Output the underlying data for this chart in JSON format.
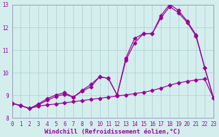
{
  "xlabel": "Windchill (Refroidissement éolien,°C)",
  "bg_color": "#d4eeee",
  "line_color": "#990099",
  "grid_color": "#aacccc",
  "axis_color": "#9999bb",
  "xlim": [
    0,
    23
  ],
  "ylim": [
    8.0,
    13.0
  ],
  "yticks": [
    8,
    9,
    10,
    11,
    12,
    13
  ],
  "xticks": [
    0,
    1,
    2,
    3,
    4,
    5,
    6,
    7,
    8,
    9,
    10,
    11,
    12,
    13,
    14,
    15,
    16,
    17,
    18,
    19,
    20,
    21,
    22,
    23
  ],
  "curve1_x": [
    0,
    1,
    2,
    3,
    4,
    5,
    6,
    7,
    8,
    9,
    10,
    11,
    12,
    13,
    14,
    15,
    16,
    17,
    18,
    19,
    20,
    21,
    22,
    23
  ],
  "curve1_y": [
    8.65,
    8.55,
    8.42,
    8.52,
    8.58,
    8.62,
    8.67,
    8.72,
    8.77,
    8.82,
    8.87,
    8.92,
    8.97,
    9.02,
    9.08,
    9.13,
    9.22,
    9.32,
    9.45,
    9.55,
    9.62,
    9.68,
    9.72,
    8.88
  ],
  "curve2_x": [
    0,
    1,
    2,
    3,
    4,
    5,
    6,
    7,
    8,
    9,
    10,
    11,
    12,
    13,
    14,
    15,
    16,
    17,
    18,
    19,
    20,
    21,
    22,
    23
  ],
  "curve2_y": [
    8.65,
    8.55,
    8.42,
    8.58,
    8.78,
    8.95,
    9.05,
    8.92,
    9.18,
    9.38,
    9.82,
    9.75,
    9.02,
    10.55,
    11.32,
    11.72,
    11.72,
    12.42,
    12.92,
    12.65,
    12.22,
    11.62,
    10.22,
    8.88
  ],
  "curve3_x": [
    0,
    1,
    2,
    3,
    4,
    5,
    6,
    7,
    8,
    9,
    10,
    11,
    12,
    13,
    14,
    15,
    16,
    17,
    18,
    19,
    20,
    21,
    22,
    23
  ],
  "curve3_y": [
    8.65,
    8.55,
    8.42,
    8.62,
    8.85,
    9.02,
    9.12,
    8.92,
    9.22,
    9.48,
    9.82,
    9.75,
    9.02,
    10.65,
    11.52,
    11.72,
    11.72,
    12.52,
    13.02,
    12.75,
    12.28,
    11.68,
    10.22,
    8.88
  ],
  "marker": "D",
  "marker_size": 2.5,
  "linewidth": 0.9,
  "xlabel_fontsize": 6.5,
  "tick_fontsize": 5.5
}
